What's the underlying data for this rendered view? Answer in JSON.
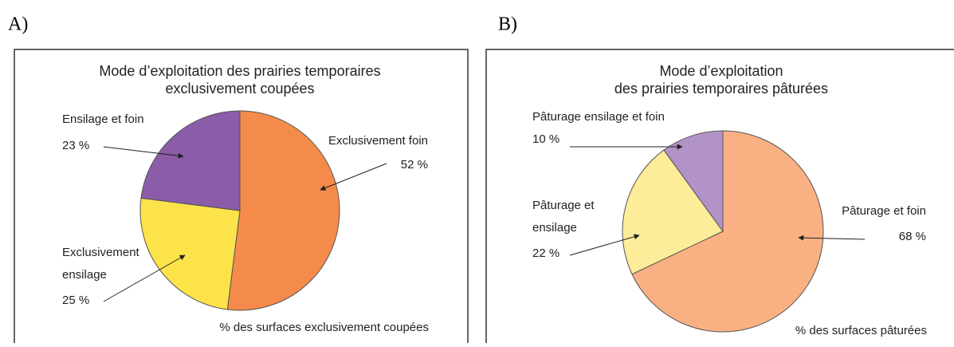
{
  "chart_data": [
    {
      "type": "pie",
      "panel_label": "A)",
      "title": [
        "Mode d’exploitation des prairies temporaires",
        "exclusivement coupées"
      ],
      "categories": [
        [
          "Exclusivement foin"
        ],
        [
          "Exclusivement",
          "ensilage"
        ],
        [
          "Ensilage et foin"
        ]
      ],
      "values": [
        52,
        25,
        23
      ],
      "value_labels": [
        "52 %",
        "25 %",
        "23 %"
      ],
      "colors": [
        "#f58b4a",
        "#fde34a",
        "#8b5ca8"
      ],
      "footnote": "% des surfaces exclusivement coupées"
    },
    {
      "type": "pie",
      "panel_label": "B)",
      "title": [
        "Mode d’exploitation",
        "des prairies temporaires pâturées"
      ],
      "categories": [
        [
          "Pâturage et foin"
        ],
        [
          "Pâturage et",
          "ensilage"
        ],
        [
          "Pâturage ensilage et foin"
        ]
      ],
      "values": [
        68,
        22,
        10
      ],
      "value_labels": [
        "68 %",
        "22 %",
        "10 %"
      ],
      "colors": [
        "#f9b184",
        "#fdec9a",
        "#b193c8"
      ],
      "footnote": "% des surfaces pâturées"
    }
  ]
}
